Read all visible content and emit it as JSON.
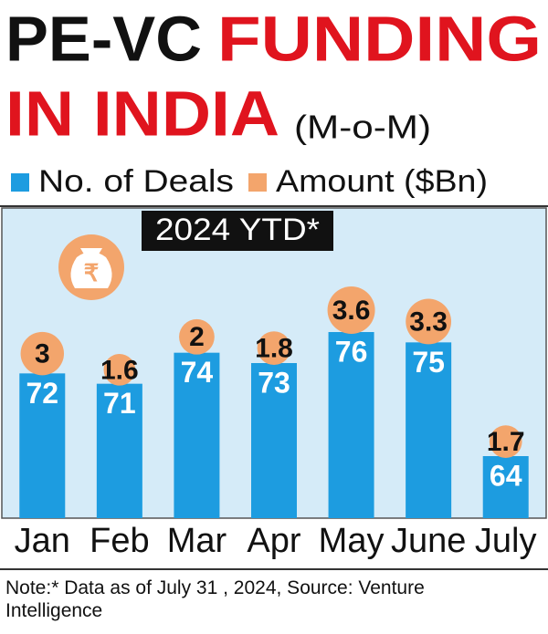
{
  "chart_data": {
    "type": "bar",
    "title": [
      "PE-VC",
      "FUNDING",
      "IN INDIA"
    ],
    "subtitle": "(M-o-M)",
    "annotation": "2024 YTD*",
    "categories": [
      "Jan",
      "Feb",
      "Mar",
      "Apr",
      "May",
      "June",
      "July"
    ],
    "series": [
      {
        "name": "No. of Deals",
        "color": "#1d9ce0",
        "values": [
          72,
          71,
          74,
          73,
          76,
          75,
          64
        ]
      },
      {
        "name": "Amount ($Bn)",
        "color": "#f3a56c",
        "values": [
          3,
          1.6,
          2,
          1.8,
          3.6,
          3.3,
          1.7
        ]
      }
    ],
    "ylim": [
      58,
      88
    ],
    "note": "Note:* Data as of July 31 , 2024, Source: Venture Intelligence"
  }
}
